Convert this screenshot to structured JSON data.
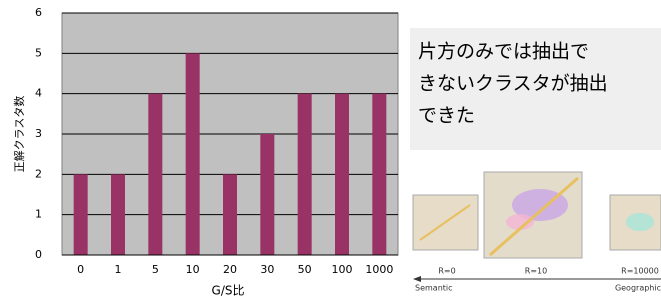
{
  "chart_data": {
    "type": "bar",
    "x_label": "G/S比",
    "y_label": "正解クラスタ数",
    "categories": [
      "0",
      "1",
      "5",
      "10",
      "20",
      "30",
      "50",
      "100",
      "1000"
    ],
    "values": [
      2,
      2,
      4,
      5,
      2,
      3,
      4,
      4,
      4
    ],
    "color": "#993366",
    "ylim": [
      0,
      6
    ],
    "yticks": [
      0,
      1,
      2,
      3,
      4,
      5,
      6
    ],
    "grid": true,
    "background": "#c0c0c0"
  },
  "side_note": {
    "lines": [
      "片方のみでは抽出で",
      "きないクラスタが抽出",
      "できた"
    ]
  },
  "maps": {
    "labels": [
      "R=0",
      "R=10",
      "R=10000"
    ],
    "left_label": "Semantic",
    "right_label": "Geographic"
  }
}
